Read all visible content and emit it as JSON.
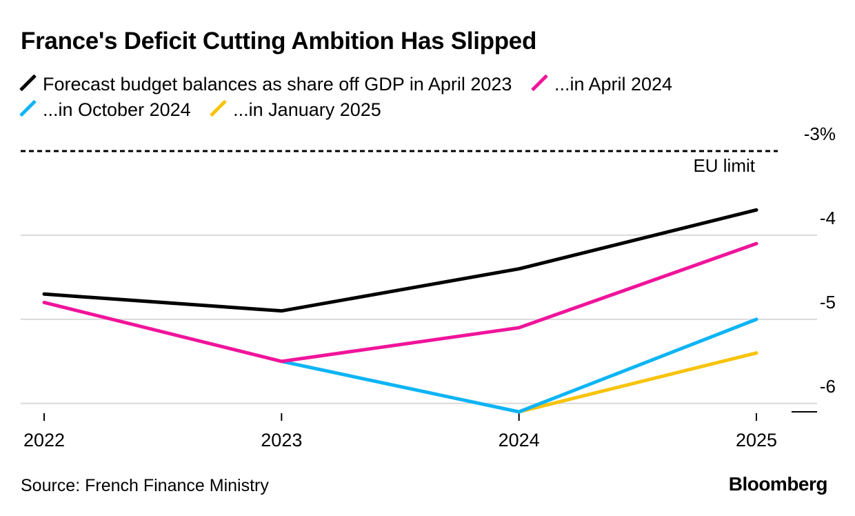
{
  "title": "France's Deficit Cutting Ambition Has Slipped",
  "source": "Source: French Finance Ministry",
  "brand": "Bloomberg",
  "chart_data": {
    "type": "line",
    "title": "France's Deficit Cutting Ambition Has Slipped",
    "xlabel": "",
    "ylabel": "",
    "x": [
      2022,
      2023,
      2024,
      2025
    ],
    "x_tick_labels": [
      "2022",
      "2023",
      "2024",
      "2025"
    ],
    "y_ticks": [
      {
        "value": -3,
        "label": "-3%"
      },
      {
        "value": -4,
        "label": "-4"
      },
      {
        "value": -5,
        "label": "-5"
      },
      {
        "value": -6,
        "label": "-6"
      }
    ],
    "ylim": [
      -6.1,
      -3
    ],
    "grid": true,
    "legend_position": "top",
    "reference_line": {
      "value": -3,
      "label": "EU limit",
      "style": "dashed",
      "color": "#000000"
    },
    "series": [
      {
        "name": "Forecast budget balances as share off GDP in April 2023",
        "color": "#000000",
        "x": [
          2022,
          2023,
          2024,
          2025
        ],
        "values": [
          -4.7,
          -4.9,
          -4.4,
          -3.7
        ]
      },
      {
        "name": "...in April 2024",
        "color": "#f0149b",
        "x": [
          2022,
          2023,
          2024,
          2025
        ],
        "values": [
          -4.8,
          -5.5,
          -5.1,
          -4.1
        ]
      },
      {
        "name": "...in October 2024",
        "color": "#0eb4f5",
        "x": [
          2023,
          2024,
          2025
        ],
        "values": [
          -5.5,
          -6.1,
          -5.0
        ]
      },
      {
        "name": "...in January 2025",
        "color": "#f8c30c",
        "x": [
          2024,
          2025
        ],
        "values": [
          -6.1,
          -5.4
        ]
      }
    ]
  }
}
